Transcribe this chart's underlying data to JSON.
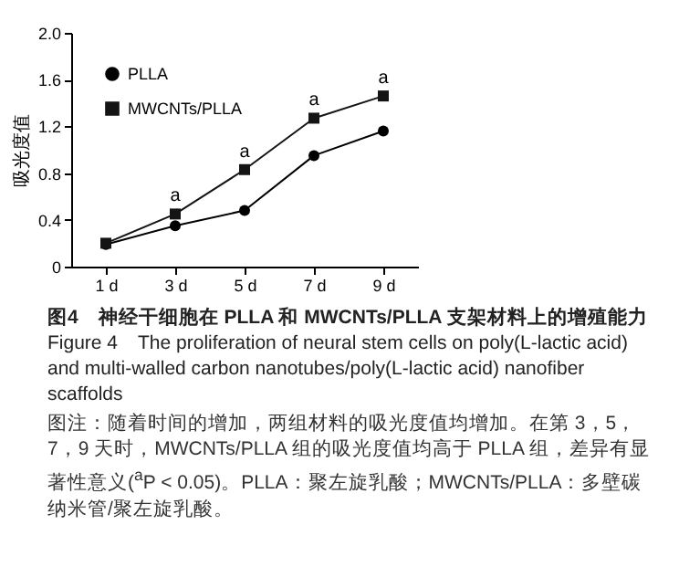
{
  "chart_data": {
    "type": "line",
    "title": "图4　神经干细胞在 PLLA 和 MWCNTs/PLLA 支架材料上的增殖能力",
    "subtitle": "Figure 4　The proliferation of neural stem cells on poly(L-lactic acid) and multi-walled carbon nanotubes/poly(L-lactic acid) nanofiber scaffolds",
    "ylabel": "吸光度值",
    "categories": [
      "1 d",
      "3 d",
      "5 d",
      "7 d",
      "9 d"
    ],
    "series": [
      {
        "name": "PLLA",
        "color": "#000000",
        "marker": "circle",
        "values": [
          0.19,
          0.35,
          0.48,
          0.95,
          1.16
        ]
      },
      {
        "name": "MWCNTs/PLLA",
        "color": "#141414",
        "marker": "square",
        "values": [
          0.2,
          0.45,
          0.83,
          1.27,
          1.46
        ]
      }
    ],
    "ylim": [
      0,
      2
    ],
    "yticks": [
      0,
      0.4,
      0.8,
      1.2,
      1.6,
      {
        "value": 2,
        "label": "2.0"
      }
    ],
    "legend": "top left",
    "annotations": [
      {
        "text": "a",
        "x": "3 d",
        "y": 0.45
      },
      {
        "text": "a",
        "x": "5 d",
        "y": 0.83
      },
      {
        "text": "a",
        "x": "7 d",
        "y": 1.27
      },
      {
        "text": "a",
        "x": "9 d",
        "y": 1.46
      },
      "图注：随着时间的增加，两组材料的吸光度值均增加。在第 3，5，7，9 天时，MWCNTs/PLLA 组的吸光度值均高于 PLLA 组，差异有显著性意义($^{a}$P < 0.05)。PLLA：聚左旋乳酸；MWCNTs/PLLA：多壁碳纳米管/聚左旋乳酸。"
    ]
  }
}
